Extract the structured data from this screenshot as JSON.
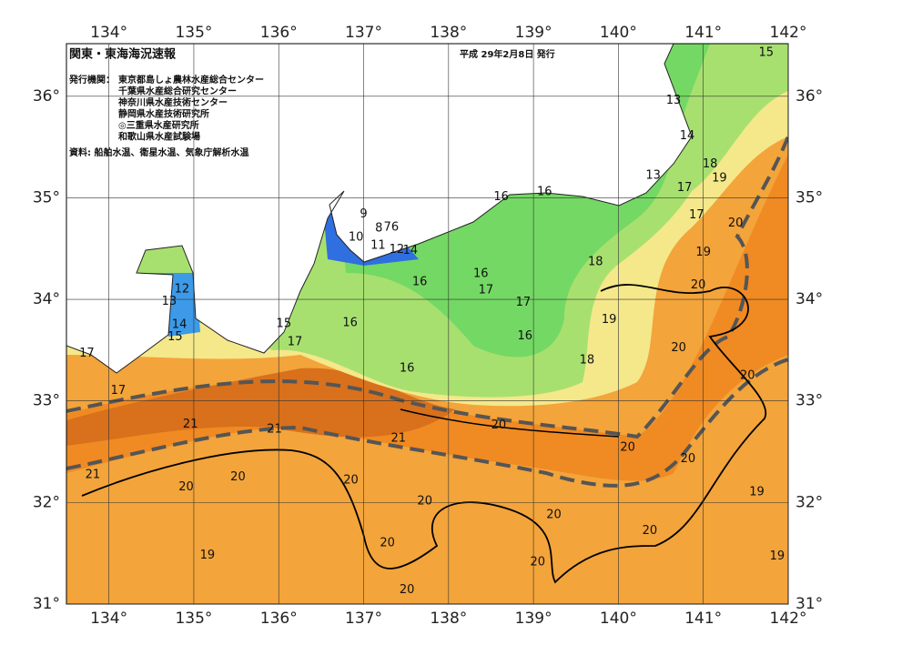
{
  "map": {
    "title": "関東・東海海況速報",
    "date": "平成 29年2月8日 発行",
    "issuers_label": "発行機関：",
    "issuers": [
      "東京都島しょ農林水産総合センター",
      "千葉県水産総合研究センター",
      "神奈川県水産技術センター",
      "静岡県水産技術研究所",
      "◎三重県水産研究所",
      "和歌山県水産試験場"
    ],
    "sources": "資料: 船舶水温、衛星水温、気象庁解析水温",
    "lon_range": [
      133.5,
      142
    ],
    "lat_range": [
      31,
      36.5
    ],
    "lon_ticks": [
      {
        "value": 134,
        "label": "134°"
      },
      {
        "value": 135,
        "label": "135°"
      },
      {
        "value": 136,
        "label": "136°"
      },
      {
        "value": 137,
        "label": "137°"
      },
      {
        "value": 138,
        "label": "138°"
      },
      {
        "value": 139,
        "label": "139°"
      },
      {
        "value": 140,
        "label": "140°"
      },
      {
        "value": 141,
        "label": "141°"
      },
      {
        "value": 142,
        "label": "142°"
      }
    ],
    "lat_ticks": [
      {
        "value": 31,
        "label": "31°"
      },
      {
        "value": 32,
        "label": "32°"
      },
      {
        "value": 33,
        "label": "33°"
      },
      {
        "value": 34,
        "label": "34°"
      },
      {
        "value": 35,
        "label": "35°"
      },
      {
        "value": 36,
        "label": "36°"
      }
    ],
    "contour_labels": [
      {
        "text": "15",
        "lon": 141.74,
        "lat": 36.43
      },
      {
        "text": "13",
        "lon": 140.65,
        "lat": 35.96
      },
      {
        "text": "14",
        "lon": 140.81,
        "lat": 35.61
      },
      {
        "text": "13",
        "lon": 140.41,
        "lat": 35.22
      },
      {
        "text": "18",
        "lon": 141.08,
        "lat": 35.33
      },
      {
        "text": "19",
        "lon": 141.19,
        "lat": 35.19
      },
      {
        "text": "17",
        "lon": 140.78,
        "lat": 35.1
      },
      {
        "text": "17",
        "lon": 140.92,
        "lat": 34.83
      },
      {
        "text": "20",
        "lon": 141.38,
        "lat": 34.75
      },
      {
        "text": "19",
        "lon": 141.0,
        "lat": 34.46
      },
      {
        "text": "20",
        "lon": 140.94,
        "lat": 34.14
      },
      {
        "text": "16",
        "lon": 138.62,
        "lat": 35.01
      },
      {
        "text": "16",
        "lon": 139.13,
        "lat": 35.06
      },
      {
        "text": "9",
        "lon": 137.0,
        "lat": 34.84
      },
      {
        "text": "8",
        "lon": 137.18,
        "lat": 34.7
      },
      {
        "text": "7",
        "lon": 137.28,
        "lat": 34.71
      },
      {
        "text": "6",
        "lon": 137.37,
        "lat": 34.71
      },
      {
        "text": "10",
        "lon": 136.91,
        "lat": 34.61
      },
      {
        "text": "11",
        "lon": 137.17,
        "lat": 34.53
      },
      {
        "text": "12",
        "lon": 137.39,
        "lat": 34.49
      },
      {
        "text": "14",
        "lon": 137.55,
        "lat": 34.48
      },
      {
        "text": "18",
        "lon": 139.73,
        "lat": 34.37
      },
      {
        "text": "16",
        "lon": 138.38,
        "lat": 34.25
      },
      {
        "text": "17",
        "lon": 138.44,
        "lat": 34.09
      },
      {
        "text": "16",
        "lon": 137.66,
        "lat": 34.17
      },
      {
        "text": "17",
        "lon": 138.88,
        "lat": 33.97
      },
      {
        "text": "19",
        "lon": 139.89,
        "lat": 33.8
      },
      {
        "text": "16",
        "lon": 138.9,
        "lat": 33.64
      },
      {
        "text": "16",
        "lon": 136.84,
        "lat": 33.77
      },
      {
        "text": "15",
        "lon": 136.06,
        "lat": 33.76
      },
      {
        "text": "17",
        "lon": 136.19,
        "lat": 33.58
      },
      {
        "text": "12",
        "lon": 134.86,
        "lat": 34.1
      },
      {
        "text": "13",
        "lon": 134.71,
        "lat": 33.98
      },
      {
        "text": "14",
        "lon": 134.83,
        "lat": 33.75
      },
      {
        "text": "15",
        "lon": 134.78,
        "lat": 33.63
      },
      {
        "text": "18",
        "lon": 139.63,
        "lat": 33.4
      },
      {
        "text": "20",
        "lon": 140.71,
        "lat": 33.52
      },
      {
        "text": "20",
        "lon": 141.52,
        "lat": 33.25
      },
      {
        "text": "16",
        "lon": 137.51,
        "lat": 33.32
      },
      {
        "text": "17",
        "lon": 133.74,
        "lat": 33.47
      },
      {
        "text": "17",
        "lon": 134.11,
        "lat": 33.1
      },
      {
        "text": "21",
        "lon": 134.96,
        "lat": 32.77
      },
      {
        "text": "21",
        "lon": 135.95,
        "lat": 32.72
      },
      {
        "text": "21",
        "lon": 137.41,
        "lat": 32.63
      },
      {
        "text": "20",
        "lon": 138.59,
        "lat": 32.76
      },
      {
        "text": "20",
        "lon": 140.11,
        "lat": 32.54
      },
      {
        "text": "20",
        "lon": 140.82,
        "lat": 32.43
      },
      {
        "text": "21",
        "lon": 133.81,
        "lat": 32.27
      },
      {
        "text": "20",
        "lon": 135.52,
        "lat": 32.25
      },
      {
        "text": "20",
        "lon": 134.91,
        "lat": 32.15
      },
      {
        "text": "20",
        "lon": 136.85,
        "lat": 32.22
      },
      {
        "text": "20",
        "lon": 137.72,
        "lat": 32.01
      },
      {
        "text": "20",
        "lon": 139.24,
        "lat": 31.88
      },
      {
        "text": "20",
        "lon": 140.37,
        "lat": 31.72
      },
      {
        "text": "19",
        "lon": 141.63,
        "lat": 32.1
      },
      {
        "text": "20",
        "lon": 137.28,
        "lat": 31.6
      },
      {
        "text": "20",
        "lon": 139.05,
        "lat": 31.41
      },
      {
        "text": "19",
        "lon": 135.16,
        "lat": 31.48
      },
      {
        "text": "19",
        "lon": 141.87,
        "lat": 31.47
      },
      {
        "text": "20",
        "lon": 137.51,
        "lat": 31.14
      }
    ]
  }
}
